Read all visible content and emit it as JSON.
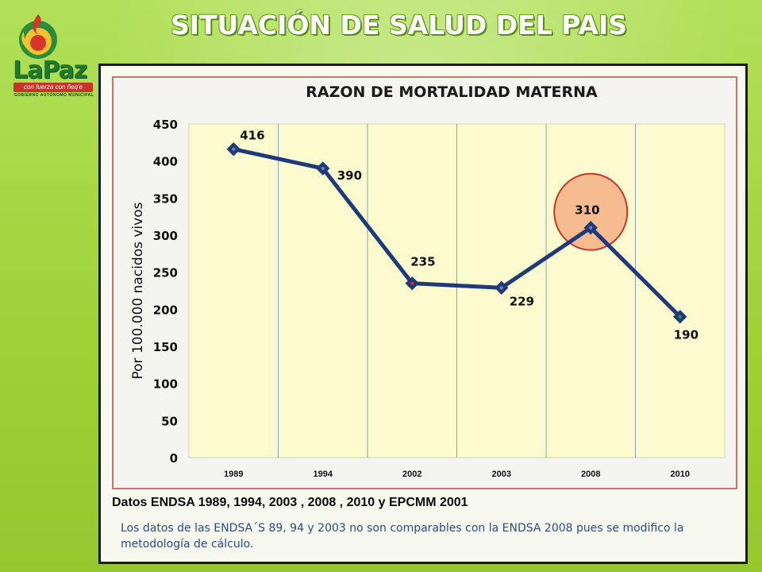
{
  "slide": {
    "title": "SITUACIÓN DE SALUD DEL PAIS",
    "logo": {
      "wordmark": "LaPaz",
      "slogan": "con fuerza con ñeq'e",
      "subtitle": "GOBIERNO AUTÓNOMO MUNICIPAL"
    },
    "source_note": "Datos ENDSA 1989, 1994, 2003 , 2008 ,  2010 y EPCMM 2001",
    "footnote": "Los datos de las ENDSA´S 89, 94 y 2003 no son comparables con la ENDSA 2008 pues se modifico la metodología de cálculo."
  },
  "colors": {
    "slide_bg": "#a6d83f",
    "line": "#1f3a78",
    "plot_bg": "#fcfbcf",
    "highlight_fill": "#f6bb8f",
    "highlight_stroke": "#c0392b",
    "marker_red": "#d32f2f",
    "marker_green": "#2e9c3a"
  },
  "chart_data": {
    "type": "line",
    "title": "RAZON DE MORTALIDAD MATERNA",
    "xlabel": "",
    "ylabel": "Por 100.000 nacidos vivos",
    "categories": [
      "1989",
      "1994",
      "2002",
      "2003",
      "2008",
      "2010"
    ],
    "series": [
      {
        "values": [
          416,
          390,
          235,
          229,
          310,
          190
        ]
      }
    ],
    "data_labels": [
      "416",
      "390",
      "235",
      "229",
      "310",
      "190"
    ],
    "y_ticks": [
      "0",
      "50",
      "100",
      "150",
      "200",
      "250",
      "300",
      "350",
      "400",
      "450"
    ],
    "ylim": [
      0,
      450
    ],
    "grid": "vertical",
    "highlight": "2008"
  }
}
